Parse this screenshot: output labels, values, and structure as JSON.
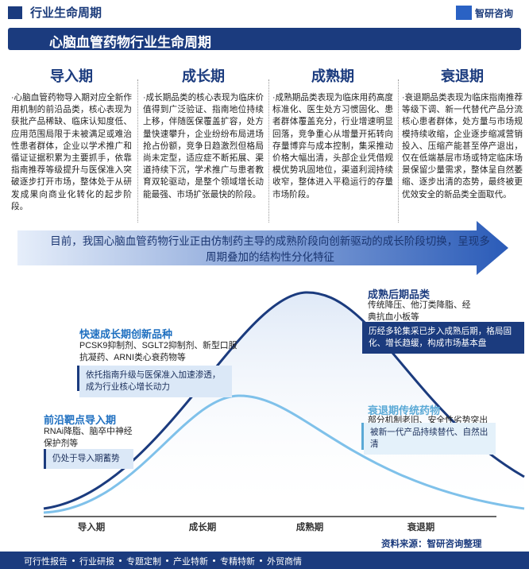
{
  "header": {
    "section": "行业生命周期",
    "brand": "智研咨询"
  },
  "title": "心脑血管药物行业生命周期",
  "stages": [
    {
      "name": "导入期",
      "text": "·心脑血管药物导入期对应全新作用机制的前沿品类，核心表现为获批产品稀缺、临床认知度低、应用范围局限于未被满足或难治性患者群体，企业以学术推广和循证证据积累为主要抓手，依靠指南推荐等级提升与医保准入突破逐步打开市场，整体处于从研发成果向商业化转化的起步阶段。"
    },
    {
      "name": "成长期",
      "text": "·成长期品类的核心表现为临床价值得到广泛验证、指南地位持续上移，伴随医保覆盖扩容，处方量快速攀升，企业纷纷布局进场抢占份额，竞争日趋激烈但格局尚未定型，适应症不断拓展、渠道持续下沉，学术推广与患者教育双轮驱动，是整个领域增长动能最强、市场扩张最快的阶段。"
    },
    {
      "name": "成熟期",
      "text": "·成熟期品类表现为临床用药高度标准化、医生处方习惯固化、患者群体覆盖充分，行业增速明显回落，竞争重心从增量开拓转向存量博弈与成本控制，集采推动价格大幅出清，头部企业凭借规模优势巩固地位，渠道利润持续收窄，整体进入平稳运行的存量市场阶段。"
    },
    {
      "name": "衰退期",
      "text": "·衰退期品类表现为临床指南推荐等级下调、新一代替代产品分流核心患者群体，处方量与市场规模持续收缩，企业逐步缩减营销投入、压缩产能甚至停产退出，仅在低端基层市场或特定临床场景保留少量需求，整体呈自然萎缩、逐步出清的态势，最终被更优效安全的新品类全面取代。"
    }
  ],
  "banner": "目前，我国心脑血管药物行业正由仿制药主导的成熟阶段向创新驱动的成长阶段切换，呈现多周期叠加的结构性分化特征",
  "annotations": [
    {
      "title": "快速成长期创新品种",
      "items": "PCSK9抑制剂、SGLT2抑制剂、新型口服抗凝药、ARNI类心衰药物等",
      "note": "依托指南升级与医保准入加速渗透，成为行业核心增长动力"
    },
    {
      "title": "前沿靶点导入期",
      "items": "RNAi降脂、脑卒中神经保护剂等",
      "note": "仍处于导入期蓄势"
    },
    {
      "title": "成熟后期品类",
      "items": "传统降压、他汀类降脂、经典抗血小板等",
      "note": "历经多轮集采已步入成熟后期，格局固化、增长趋缓，构成市场基本盘"
    },
    {
      "title": "衰退期传统药物",
      "items": "部分机制老旧、安全性劣势突出",
      "note": "被新一代产品持续替代、自然出清"
    }
  ],
  "x_labels": [
    "导入期",
    "成长期",
    "成熟期",
    "衰退期"
  ],
  "source": "资料来源：智研咨询整理",
  "footer": [
    "可行性报告",
    "行业研报",
    "专题定制",
    "产业特新",
    "专精特新",
    "外贸商情"
  ]
}
